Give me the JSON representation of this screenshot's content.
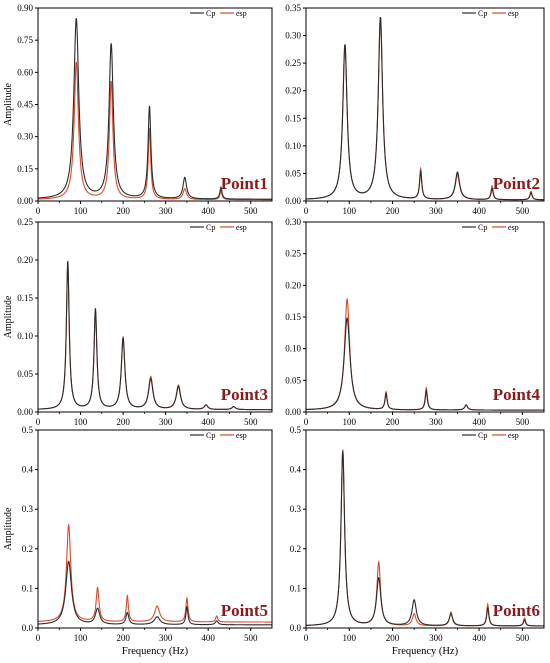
{
  "colors": {
    "cp": "#2b2b2b",
    "esp": "#d94a2b",
    "point_label": "#8c1a1a",
    "axis": "#000000"
  },
  "chart_data": [
    {
      "type": "line",
      "panel_label": "Point1",
      "ylabel": "Amplitude",
      "xlabel": "",
      "xlim": [
        0,
        550
      ],
      "ylim": [
        0,
        0.9
      ],
      "xticks": [
        "0",
        "100",
        "200",
        "300",
        "400",
        "500"
      ],
      "yticks": [
        "0.00",
        "0.15",
        "0.30",
        "0.45",
        "0.60",
        "0.75",
        "0.90"
      ],
      "legend": [
        "Cp",
        "esp"
      ],
      "legend_position": "top-right",
      "grid": false,
      "series": [
        {
          "name": "Cp",
          "base": 0.008,
          "peaks": [
            [
              90,
              0.84,
              7
            ],
            [
              172,
              0.72,
              6
            ],
            [
              262,
              0.43,
              4
            ],
            [
              345,
              0.1,
              5
            ],
            [
              430,
              0.055,
              3
            ]
          ]
        },
        {
          "name": "esp",
          "base": 0.006,
          "peaks": [
            [
              90,
              0.64,
              6
            ],
            [
              172,
              0.55,
              5
            ],
            [
              262,
              0.33,
              3.5
            ],
            [
              345,
              0.05,
              5
            ],
            [
              430,
              0.04,
              3
            ]
          ]
        }
      ]
    },
    {
      "type": "line",
      "panel_label": "Point2",
      "ylabel": "",
      "xlabel": "",
      "xlim": [
        0,
        550
      ],
      "ylim": [
        0,
        0.35
      ],
      "xticks": [
        "0",
        "100",
        "200",
        "300",
        "400",
        "500"
      ],
      "yticks": [
        "0.00",
        "0.05",
        "0.10",
        "0.15",
        "0.20",
        "0.25",
        "0.30",
        "0.35"
      ],
      "legend": [
        "Cp",
        "esp"
      ],
      "legend_position": "top-right",
      "grid": false,
      "series": [
        {
          "name": "Cp",
          "base": 0.002,
          "peaks": [
            [
              90,
              0.28,
              6
            ],
            [
              172,
              0.33,
              6
            ],
            [
              265,
              0.05,
              3
            ],
            [
              350,
              0.05,
              6
            ],
            [
              430,
              0.02,
              3
            ],
            [
              520,
              0.013,
              3
            ]
          ]
        },
        {
          "name": "esp",
          "base": 0.002,
          "peaks": [
            [
              90,
              0.28,
              6
            ],
            [
              172,
              0.33,
              6
            ],
            [
              265,
              0.055,
              3
            ],
            [
              350,
              0.045,
              6
            ],
            [
              430,
              0.025,
              3
            ],
            [
              520,
              0.015,
              3
            ]
          ]
        }
      ]
    },
    {
      "type": "line",
      "panel_label": "Point3",
      "ylabel": "Amplitude",
      "xlabel": "",
      "xlim": [
        0,
        550
      ],
      "ylim": [
        0,
        0.25
      ],
      "xticks": [
        "0",
        "100",
        "200",
        "300",
        "400",
        "500"
      ],
      "yticks": [
        "0.00",
        "0.05",
        "0.10",
        "0.15",
        "0.20",
        "0.25"
      ],
      "legend": [
        "Cp",
        "esp"
      ],
      "legend_position": "top-right",
      "grid": false,
      "series": [
        {
          "name": "Cp",
          "base": 0.003,
          "peaks": [
            [
              70,
              0.195,
              4
            ],
            [
              135,
              0.132,
              4
            ],
            [
              200,
              0.094,
              5
            ],
            [
              265,
              0.04,
              6
            ],
            [
              330,
              0.03,
              6
            ],
            [
              395,
              0.006,
              5
            ],
            [
              460,
              0.004,
              5
            ]
          ]
        },
        {
          "name": "esp",
          "base": 0.003,
          "peaks": [
            [
              70,
              0.19,
              4
            ],
            [
              135,
              0.13,
              4
            ],
            [
              200,
              0.092,
              5
            ],
            [
              265,
              0.043,
              6
            ],
            [
              330,
              0.032,
              6
            ],
            [
              395,
              0.006,
              5
            ],
            [
              460,
              0.004,
              5
            ]
          ]
        }
      ]
    },
    {
      "type": "line",
      "panel_label": "Point4",
      "ylabel": "",
      "xlabel": "",
      "xlim": [
        0,
        550
      ],
      "ylim": [
        0,
        0.3
      ],
      "xticks": [
        "0",
        "100",
        "200",
        "300",
        "400",
        "500"
      ],
      "yticks": [
        "0.00",
        "0.05",
        "0.10",
        "0.15",
        "0.20",
        "0.25",
        "0.30"
      ],
      "legend": [
        "Cp",
        "esp"
      ],
      "legend_position": "top-right",
      "grid": false,
      "series": [
        {
          "name": "Cp",
          "base": 0.003,
          "peaks": [
            [
              95,
              0.145,
              8
            ],
            [
              185,
              0.025,
              3
            ],
            [
              278,
              0.03,
              3
            ],
            [
              370,
              0.008,
              4
            ]
          ]
        },
        {
          "name": "esp",
          "base": 0.003,
          "peaks": [
            [
              95,
              0.175,
              7
            ],
            [
              185,
              0.028,
              3
            ],
            [
              278,
              0.035,
              3
            ],
            [
              370,
              0.008,
              4
            ]
          ]
        }
      ]
    },
    {
      "type": "line",
      "panel_label": "Point5",
      "ylabel": "Amplitude",
      "xlabel": "Frequency (Hz)",
      "xlim": [
        0,
        550
      ],
      "ylim": [
        0,
        0.5
      ],
      "xticks": [
        "0",
        "100",
        "200",
        "300",
        "400",
        "500"
      ],
      "yticks": [
        "0.0",
        "0.1",
        "0.2",
        "0.3",
        "0.4",
        "0.5"
      ],
      "legend": [
        "Cp",
        "esp"
      ],
      "legend_position": "top-right",
      "grid": false,
      "series": [
        {
          "name": "Cp",
          "base": 0.008,
          "peaks": [
            [
              72,
              0.16,
              8
            ],
            [
              140,
              0.04,
              6
            ],
            [
              210,
              0.03,
              4
            ],
            [
              280,
              0.02,
              8
            ],
            [
              350,
              0.045,
              3
            ],
            [
              420,
              0.01,
              4
            ]
          ]
        },
        {
          "name": "esp",
          "base": 0.015,
          "peaks": [
            [
              72,
              0.245,
              6
            ],
            [
              140,
              0.085,
              4
            ],
            [
              210,
              0.065,
              3
            ],
            [
              280,
              0.04,
              7
            ],
            [
              350,
              0.06,
              3
            ],
            [
              420,
              0.015,
              3
            ]
          ]
        }
      ]
    },
    {
      "type": "line",
      "panel_label": "Point6",
      "ylabel": "",
      "xlabel": "Frequency (Hz)",
      "xlim": [
        0,
        550
      ],
      "ylim": [
        0,
        0.5
      ],
      "xticks": [
        "0",
        "100",
        "200",
        "300",
        "400",
        "500"
      ],
      "yticks": [
        "0.0",
        "0.1",
        "0.2",
        "0.3",
        "0.4",
        "0.5"
      ],
      "legend": [
        "Cp",
        "esp"
      ],
      "legend_position": "top-right",
      "grid": false,
      "series": [
        {
          "name": "Cp",
          "base": 0.005,
          "peaks": [
            [
              85,
              0.44,
              5
            ],
            [
              168,
              0.12,
              6
            ],
            [
              250,
              0.065,
              6
            ],
            [
              335,
              0.03,
              5
            ],
            [
              420,
              0.045,
              3
            ],
            [
              505,
              0.015,
              3
            ]
          ]
        },
        {
          "name": "esp",
          "base": 0.005,
          "peaks": [
            [
              85,
              0.445,
              5
            ],
            [
              168,
              0.16,
              5
            ],
            [
              250,
              0.03,
              5
            ],
            [
              335,
              0.035,
              4
            ],
            [
              420,
              0.055,
              3
            ],
            [
              505,
              0.02,
              3
            ]
          ]
        }
      ]
    }
  ]
}
